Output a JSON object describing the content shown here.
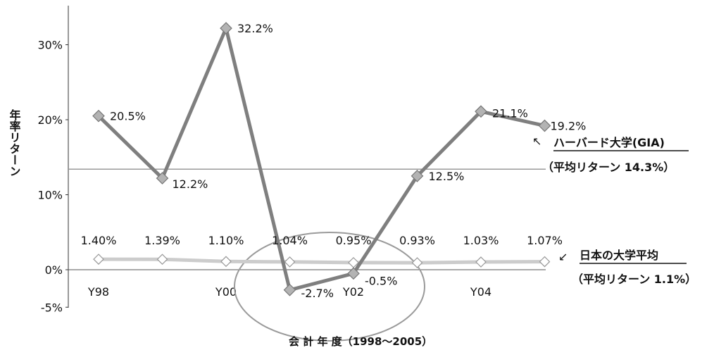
{
  "chart_data": {
    "type": "line",
    "ylabel": "年率リターン",
    "xlabel": "会 計 年 度（1998～2005）",
    "ylim": [
      -5,
      35
    ],
    "yticks": [
      {
        "v": -5,
        "label": "-5%"
      },
      {
        "v": 0,
        "label": "0%"
      },
      {
        "v": 10,
        "label": "10%"
      },
      {
        "v": 20,
        "label": "20%"
      },
      {
        "v": 30,
        "label": "30%"
      }
    ],
    "x": [
      1998,
      1999,
      2000,
      2001,
      2002,
      2003,
      2004,
      2005
    ],
    "xticks": [
      {
        "i": 0,
        "label": "Y98"
      },
      {
        "i": 2,
        "label": "Y00"
      },
      {
        "i": 4,
        "label": "Y02"
      },
      {
        "i": 6,
        "label": "Y04"
      }
    ],
    "series": [
      {
        "name": "ハーバード大学(GIA)",
        "values": [
          20.5,
          12.2,
          32.2,
          -2.7,
          -0.5,
          12.5,
          21.1,
          19.2
        ],
        "labels": [
          "20.5%",
          "12.2%",
          "32.2%",
          "-2.7%",
          "-0.5%",
          "12.5%",
          "21.1%",
          "19.2%"
        ],
        "color": "#7f7f7f",
        "marker_color": "#b3b3b3"
      },
      {
        "name": "日本の大学平均",
        "values": [
          1.4,
          1.39,
          1.1,
          1.04,
          0.95,
          0.93,
          1.03,
          1.07
        ],
        "labels": [
          "1.40%",
          "1.39%",
          "1.10%",
          "1.04%",
          "0.95%",
          "0.93%",
          "1.03%",
          "1.07%"
        ],
        "color": "#cccccc",
        "marker_color": "#ffffff"
      }
    ],
    "reference_lines": [
      {
        "value": 13.4,
        "color": "#9a9a9a"
      }
    ],
    "annotations": {
      "harvard_name": "ハーバード大学(GIA)",
      "harvard_avg": "（平均リターン 14.3%）",
      "japan_name": "日本の大学平均",
      "japan_avg": "（平均リターン 1.1%）",
      "arrow_up": "↖",
      "arrow_down": "↙"
    },
    "highlight": "ellipse around 2001–2003"
  }
}
